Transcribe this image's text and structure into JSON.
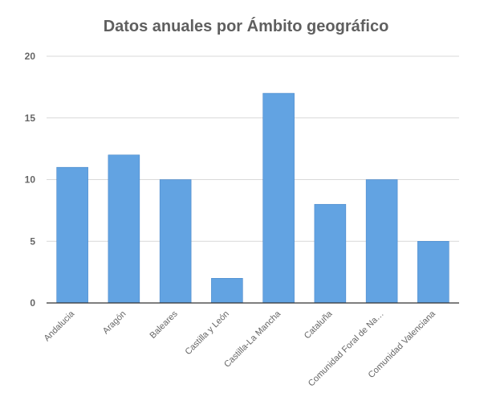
{
  "chart_data": {
    "type": "bar",
    "title": "Datos anuales por Ámbito geográfico",
    "xlabel": "",
    "ylabel": "",
    "categories": [
      "Andalucia",
      "Aragón",
      "Baleares",
      "Castilla y León",
      "Castilla-La Mancha",
      "Cataluña",
      "Comunidad Foral de Na…",
      "Comunidad Valenciana"
    ],
    "values": [
      11,
      12,
      10,
      2,
      17,
      8,
      10,
      5
    ],
    "ylim": [
      0,
      20
    ],
    "yticks": [
      "0",
      "5",
      "10",
      "15",
      "20"
    ],
    "grid": true,
    "legend": "none",
    "colors": {
      "bar": "#62a3e2",
      "grid": "#d9d9d9",
      "axis": "#333333",
      "tick_label": "#666666",
      "title": "#5f5f5f"
    }
  }
}
